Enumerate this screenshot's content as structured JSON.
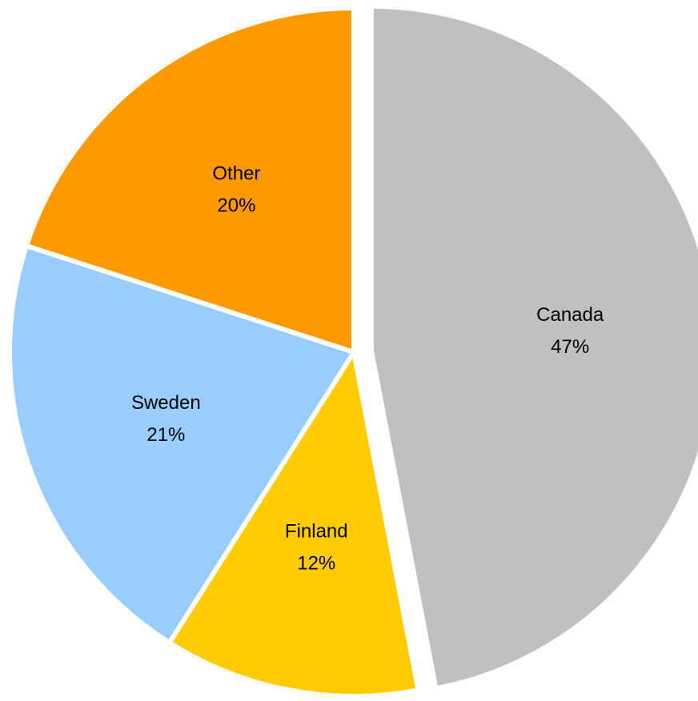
{
  "chart_data": {
    "type": "pie",
    "categories": [
      "Canada",
      "Finland",
      "Sweden",
      "Other"
    ],
    "values": [
      47,
      12,
      21,
      20
    ],
    "value_labels": [
      "47%",
      "12%",
      "21%",
      "20%"
    ],
    "colors": [
      "#c0c0c0",
      "#ffcc00",
      "#99ccff",
      "#ff9900"
    ],
    "exploded": [
      true,
      false,
      false,
      false
    ]
  }
}
